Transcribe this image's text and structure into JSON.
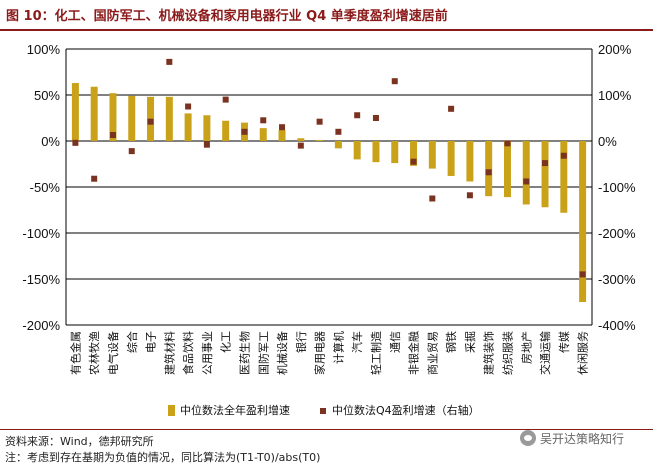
{
  "title": "图 10：化工、国防军工、机械设备和家用电器行业 Q4 单季度盈利增速居前",
  "source": "资料来源：Wind，德邦研究所",
  "note": "注：考虑到存在基期为负值的情况，同比算法为(T1-T0)/abs(T0)",
  "watermark": "吴开达策略知行",
  "colors": {
    "bar": "#c9a21a",
    "marker": "#7a3320",
    "title": "#8b1a1a",
    "grid": "#000000"
  },
  "chart_data": {
    "type": "bar",
    "categories": [
      "有色金属",
      "农林牧渔",
      "电气设备",
      "综合",
      "电子",
      "建筑材料",
      "食品饮料",
      "公用事业",
      "化工",
      "医药生物",
      "国防军工",
      "机械设备",
      "银行",
      "家用电器",
      "计算机",
      "汽车",
      "轻工制造",
      "通信",
      "非银金融",
      "商业贸易",
      "钢铁",
      "采掘",
      "建筑装饰",
      "纺织服装",
      "房地产",
      "交通运输",
      "传媒",
      "休闲服务"
    ],
    "series": [
      {
        "name": "中位数法全年盈利增速",
        "axis": "left",
        "kind": "bar",
        "values": [
          63,
          59,
          52,
          49,
          48,
          48,
          30,
          28,
          22,
          20,
          14,
          12,
          3,
          1,
          -8,
          -20,
          -23,
          -24,
          -27,
          -30,
          -38,
          -44,
          -60,
          -61,
          -69,
          -72,
          -78,
          -175
        ]
      },
      {
        "name": "中位数法Q4盈利增速（右轴）",
        "axis": "right",
        "kind": "marker",
        "values": [
          -4,
          -82,
          13,
          -22,
          42,
          172,
          75,
          -8,
          90,
          20,
          45,
          30,
          -10,
          42,
          20,
          56,
          50,
          130,
          -45,
          -125,
          70,
          -118,
          -68,
          -5,
          -88,
          -48,
          -32,
          -290
        ]
      }
    ],
    "left_axis": {
      "ylim": [
        -200,
        100
      ],
      "ticks": [
        "100%",
        "50%",
        "0%",
        "-50%",
        "-100%",
        "-150%",
        "-200%"
      ]
    },
    "right_axis": {
      "ylim": [
        -400,
        200
      ],
      "ticks": [
        "200%",
        "100%",
        "0%",
        "-100%",
        "-200%",
        "-300%",
        "-400%"
      ]
    },
    "legend": {
      "position": "bottom",
      "items": [
        "中位数法全年盈利增速",
        "中位数法Q4盈利增速（右轴）"
      ]
    },
    "grid": true
  }
}
